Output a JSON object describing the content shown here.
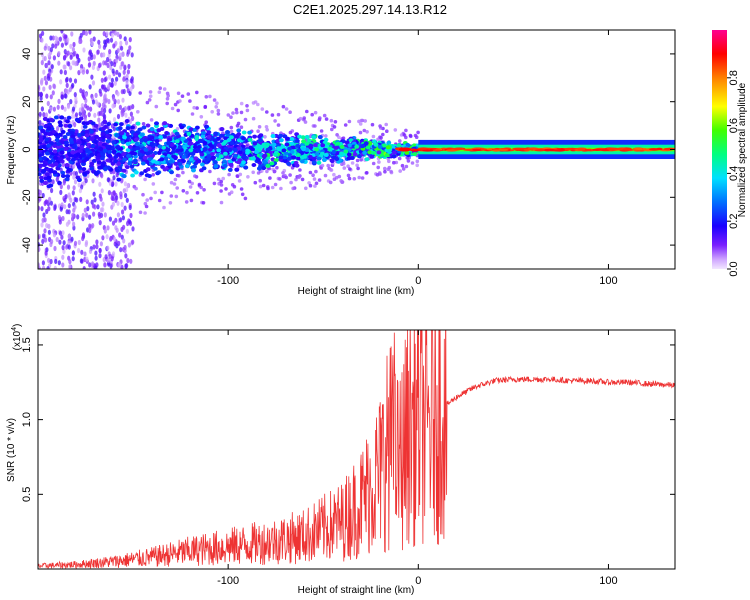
{
  "title": "C2E1.2025.297.14.13.R12",
  "colors": {
    "snr_line": "#ee3333",
    "axis": "#000000"
  },
  "chart_data": [
    {
      "type": "heatmap",
      "name": "spectrogram",
      "xlabel": "Height of straight line (km)",
      "ylabel": "Frequency (Hz)",
      "xlim": [
        -200,
        135
      ],
      "ylim": [
        -50,
        50
      ],
      "xticks": [
        -100,
        0,
        100
      ],
      "xtick_labels": [
        "-100",
        "0",
        "100"
      ],
      "yticks": [
        -40,
        -20,
        0,
        20,
        40
      ],
      "ytick_labels": [
        "-40",
        "-20",
        "0",
        "20",
        "40"
      ],
      "colorbar": {
        "label": "Normalized spectral amplitude",
        "range": [
          0.0,
          1.0
        ],
        "ticks": [
          0.0,
          0.2,
          0.4,
          0.6,
          0.8
        ],
        "tick_labels": [
          "0.0",
          "0.2",
          "0.4",
          "0.6",
          "0.8"
        ]
      }
    },
    {
      "type": "line",
      "name": "snr",
      "xlabel": "Height of straight line (km)",
      "ylabel": "SNR (10 * v/v)",
      "scale_label_base": "(x10",
      "scale_label_exp": "4",
      "scale_label_end": ")",
      "xlim": [
        -200,
        135
      ],
      "ylim": [
        0,
        1.6
      ],
      "xticks": [
        -100,
        0,
        100
      ],
      "xtick_labels": [
        "-100",
        "0",
        "100"
      ],
      "yticks": [
        0.5,
        1.0,
        1.5
      ],
      "ytick_labels": [
        "0.5",
        "1.0",
        "1.5"
      ],
      "series": [
        {
          "name": "SNR",
          "x": [
            -200,
            -180,
            -160,
            -140,
            -120,
            -100,
            -80,
            -60,
            -40,
            -30,
            -20,
            -15,
            -10,
            -5,
            0,
            5,
            10,
            20,
            30,
            40,
            50,
            60,
            70,
            80,
            90,
            100,
            110,
            120,
            135
          ],
          "y": [
            0.02,
            0.03,
            0.05,
            0.08,
            0.12,
            0.15,
            0.18,
            0.22,
            0.32,
            0.45,
            0.65,
            0.85,
            0.7,
            0.95,
            1.0,
            0.95,
            1.05,
            1.15,
            1.22,
            1.26,
            1.27,
            1.27,
            1.27,
            1.26,
            1.26,
            1.25,
            1.25,
            1.24,
            1.23
          ]
        }
      ]
    }
  ]
}
